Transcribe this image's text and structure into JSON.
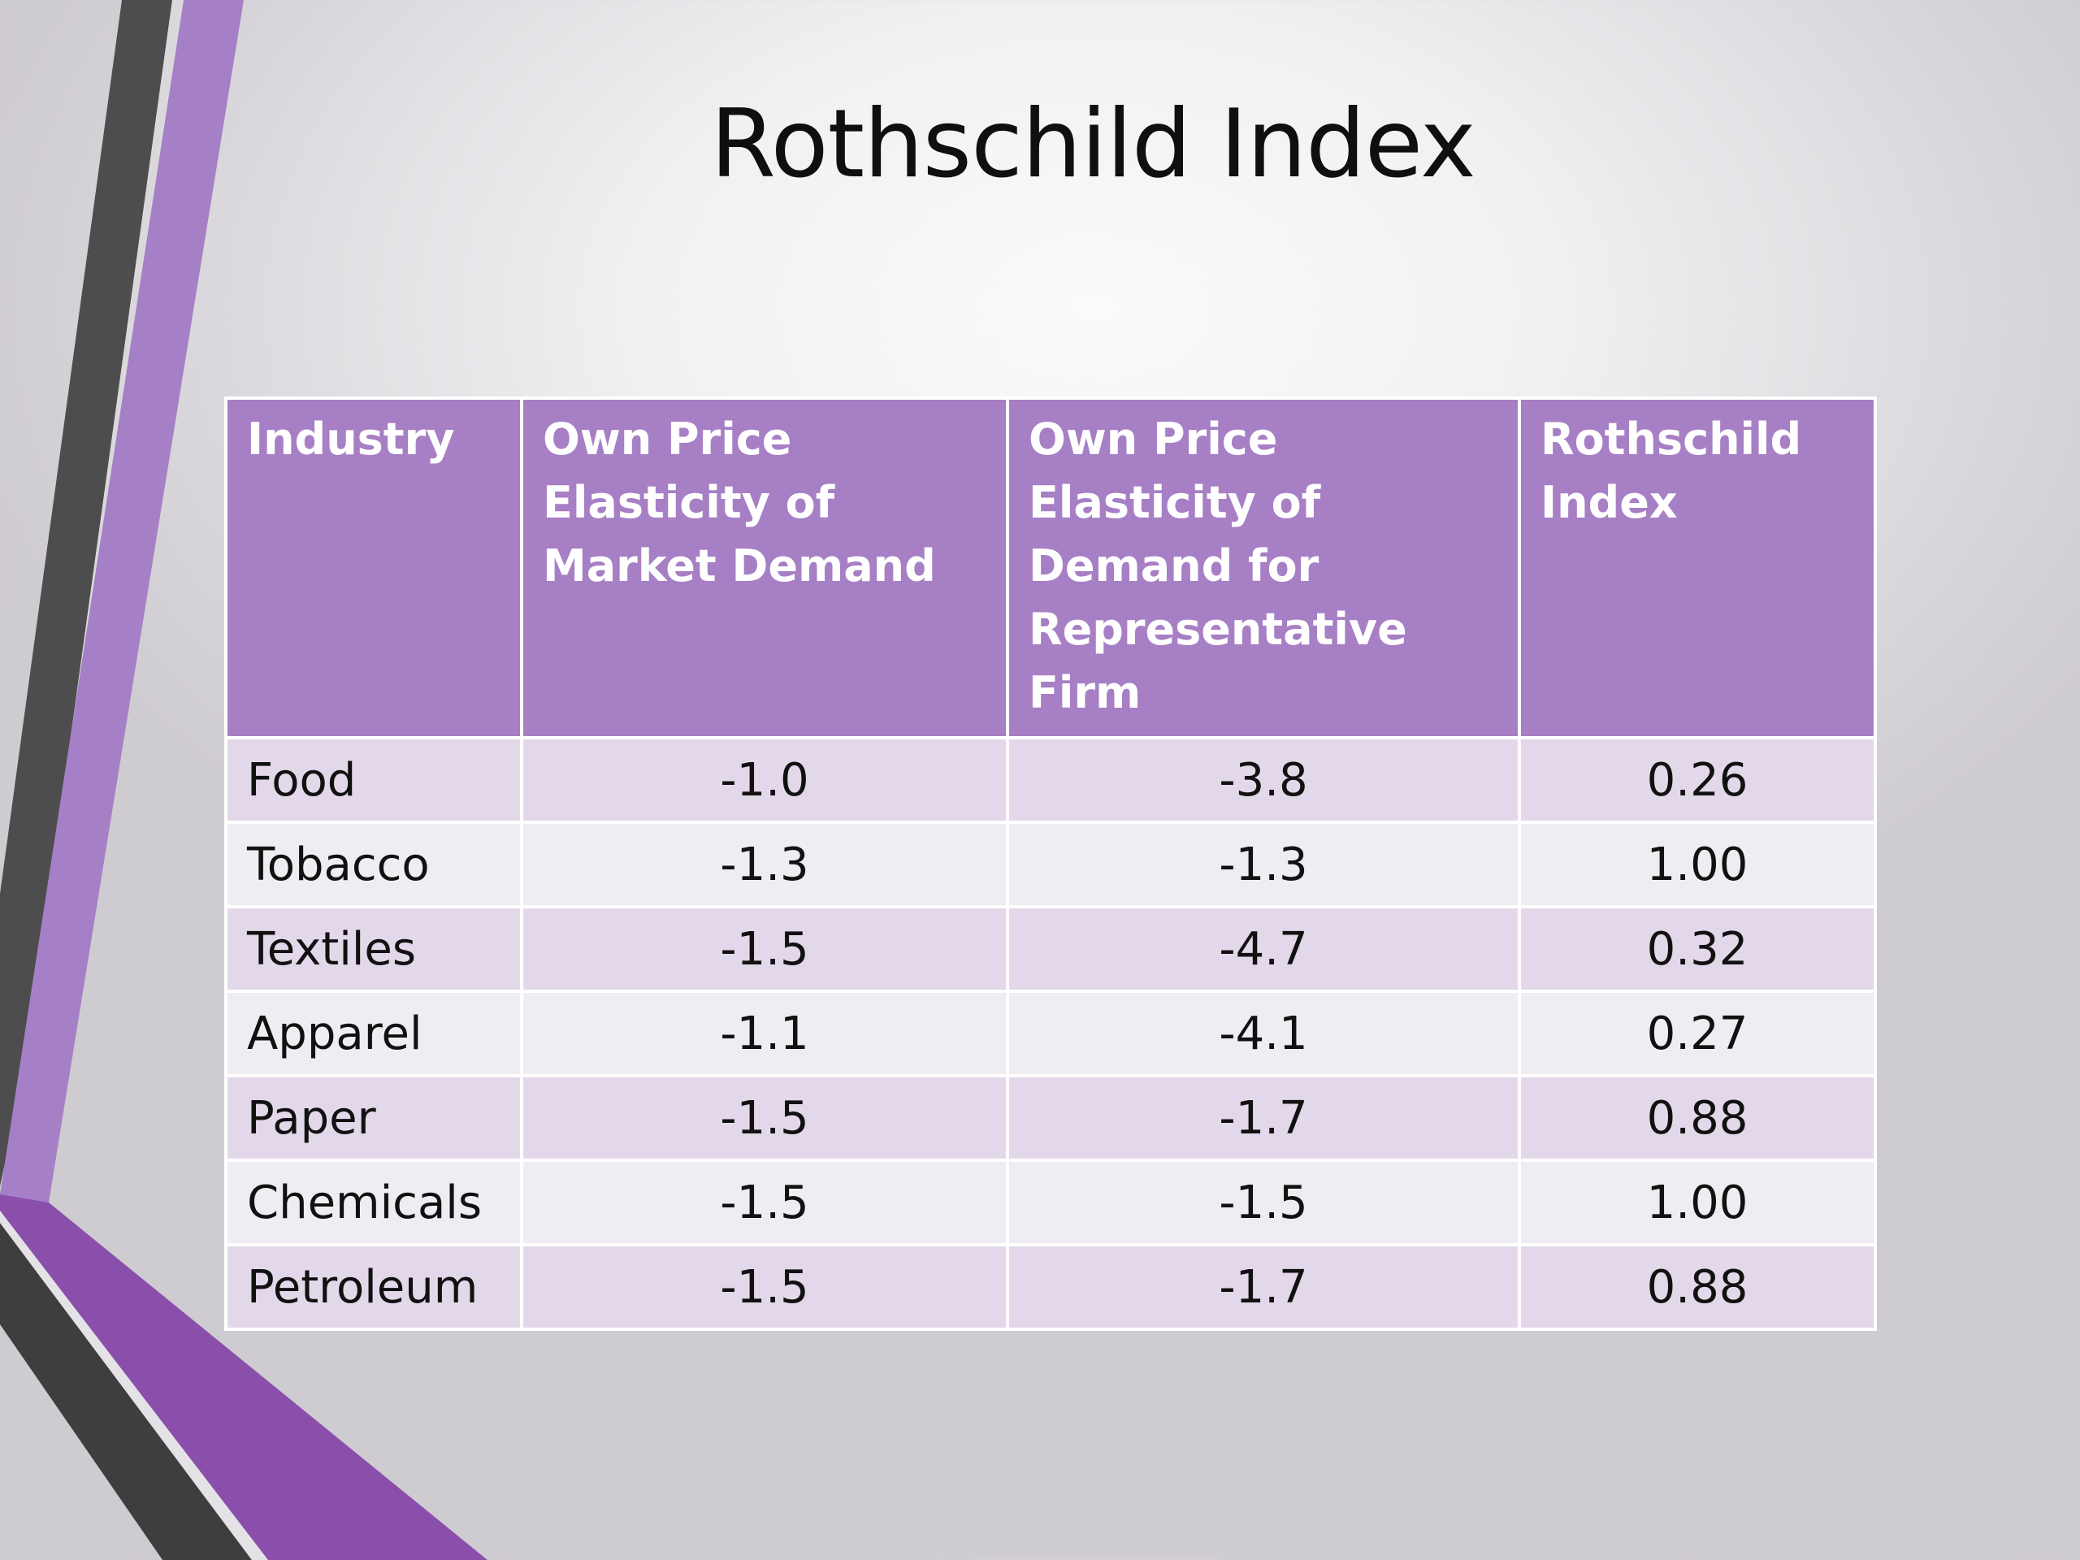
{
  "slide": {
    "title": "Rothschild Index"
  },
  "colors": {
    "header_bg": "#a77fc5",
    "row_odd_bg": "#e3d8e9",
    "row_even_bg": "#efedf2",
    "accent_purple": "#9d6cc4",
    "accent_dark": "#3c3c3c"
  },
  "table": {
    "headers": [
      "Industry",
      "Own Price Elasticity of Market Demand",
      "Own Price Elasticity of Demand for Representative Firm",
      "Rothschild Index"
    ],
    "rows": [
      {
        "industry": "Food",
        "market_elasticity": "-1.0",
        "firm_elasticity": "-3.8",
        "rothschild_index": "0.26"
      },
      {
        "industry": "Tobacco",
        "market_elasticity": "-1.3",
        "firm_elasticity": "-1.3",
        "rothschild_index": "1.00"
      },
      {
        "industry": "Textiles",
        "market_elasticity": "-1.5",
        "firm_elasticity": "-4.7",
        "rothschild_index": "0.32"
      },
      {
        "industry": "Apparel",
        "market_elasticity": "-1.1",
        "firm_elasticity": "-4.1",
        "rothschild_index": "0.27"
      },
      {
        "industry": "Paper",
        "market_elasticity": "-1.5",
        "firm_elasticity": "-1.7",
        "rothschild_index": "0.88"
      },
      {
        "industry": "Chemicals",
        "market_elasticity": "-1.5",
        "firm_elasticity": "-1.5",
        "rothschild_index": "1.00"
      },
      {
        "industry": "Petroleum",
        "market_elasticity": "-1.5",
        "firm_elasticity": "-1.7",
        "rothschild_index": "0.88"
      }
    ]
  }
}
